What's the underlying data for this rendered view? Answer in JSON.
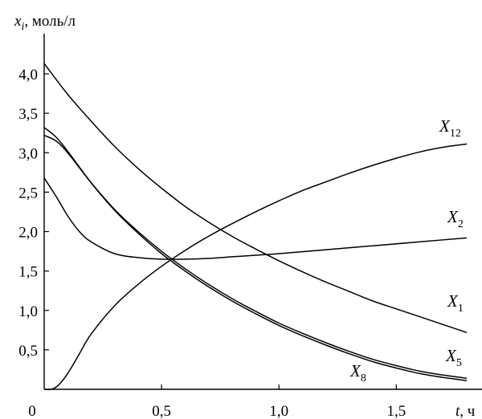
{
  "chart_data": {
    "type": "line",
    "y_axis": {
      "title_var": "x",
      "title_sub": "i",
      "title_unit": ", моль/л",
      "range": [
        0,
        4.5
      ],
      "ticks": [
        0.5,
        1.0,
        1.5,
        2.0,
        2.5,
        3.0,
        3.5,
        4.0
      ],
      "tick_labels": [
        "0,5",
        "1,0",
        "1,5",
        "2,0",
        "2,5",
        "3,0",
        "3,5",
        "4,0"
      ]
    },
    "x_axis": {
      "title_var": "t",
      "title_unit": ", ч",
      "range": [
        0,
        1.8
      ],
      "ticks": [
        0,
        0.5,
        1.0,
        1.5
      ],
      "tick_labels": [
        "0",
        "0,5",
        "1,0",
        "1,5"
      ]
    },
    "series": [
      {
        "name": "X12",
        "label_main": "X",
        "label_sub": "12",
        "x": [
          0,
          0.03,
          0.06,
          0.1,
          0.15,
          0.2,
          0.3,
          0.4,
          0.5,
          0.6,
          0.7,
          0.8,
          0.9,
          1.0,
          1.1,
          1.2,
          1.3,
          1.4,
          1.5,
          1.6,
          1.7,
          1.8
        ],
        "y": [
          0.0,
          0.0,
          0.05,
          0.2,
          0.45,
          0.7,
          1.06,
          1.33,
          1.56,
          1.76,
          1.94,
          2.1,
          2.25,
          2.39,
          2.52,
          2.63,
          2.74,
          2.84,
          2.93,
          3.01,
          3.07,
          3.11
        ]
      },
      {
        "name": "X2",
        "label_main": "X",
        "label_sub": "2",
        "x": [
          0,
          0.05,
          0.1,
          0.15,
          0.2,
          0.3,
          0.4,
          0.5,
          0.6,
          0.7,
          0.8,
          0.9,
          1.0,
          1.2,
          1.4,
          1.6,
          1.8
        ],
        "y": [
          2.68,
          2.45,
          2.2,
          2.0,
          1.87,
          1.72,
          1.67,
          1.65,
          1.65,
          1.66,
          1.68,
          1.7,
          1.72,
          1.77,
          1.82,
          1.87,
          1.92
        ]
      },
      {
        "name": "X1",
        "label_main": "X",
        "label_sub": "1",
        "x": [
          0,
          0.1,
          0.2,
          0.3,
          0.4,
          0.5,
          0.6,
          0.7,
          0.8,
          0.9,
          1.0,
          1.1,
          1.2,
          1.3,
          1.4,
          1.5,
          1.6,
          1.7,
          1.8
        ],
        "y": [
          4.13,
          3.74,
          3.4,
          3.08,
          2.8,
          2.55,
          2.32,
          2.12,
          1.94,
          1.78,
          1.63,
          1.49,
          1.36,
          1.24,
          1.12,
          1.02,
          0.92,
          0.82,
          0.72
        ]
      },
      {
        "name": "X5",
        "label_main": "X",
        "label_sub": "5",
        "x": [
          0,
          0.05,
          0.1,
          0.2,
          0.3,
          0.4,
          0.5,
          0.6,
          0.7,
          0.8,
          0.9,
          1.0,
          1.1,
          1.2,
          1.3,
          1.4,
          1.5,
          1.6,
          1.7,
          1.8
        ],
        "y": [
          3.22,
          3.15,
          3.0,
          2.62,
          2.28,
          2.0,
          1.75,
          1.53,
          1.33,
          1.15,
          0.99,
          0.84,
          0.71,
          0.59,
          0.48,
          0.38,
          0.3,
          0.23,
          0.18,
          0.14
        ]
      },
      {
        "name": "X8",
        "label_main": "X",
        "label_sub": "8",
        "x": [
          0,
          0.05,
          0.1,
          0.2,
          0.3,
          0.4,
          0.5,
          0.6,
          0.7,
          0.8,
          0.9,
          1.0,
          1.1,
          1.2,
          1.3,
          1.4,
          1.5,
          1.6,
          1.7,
          1.8
        ],
        "y": [
          3.32,
          3.2,
          3.02,
          2.62,
          2.27,
          1.98,
          1.72,
          1.5,
          1.3,
          1.12,
          0.96,
          0.81,
          0.68,
          0.56,
          0.45,
          0.35,
          0.27,
          0.2,
          0.15,
          0.11
        ]
      }
    ]
  }
}
